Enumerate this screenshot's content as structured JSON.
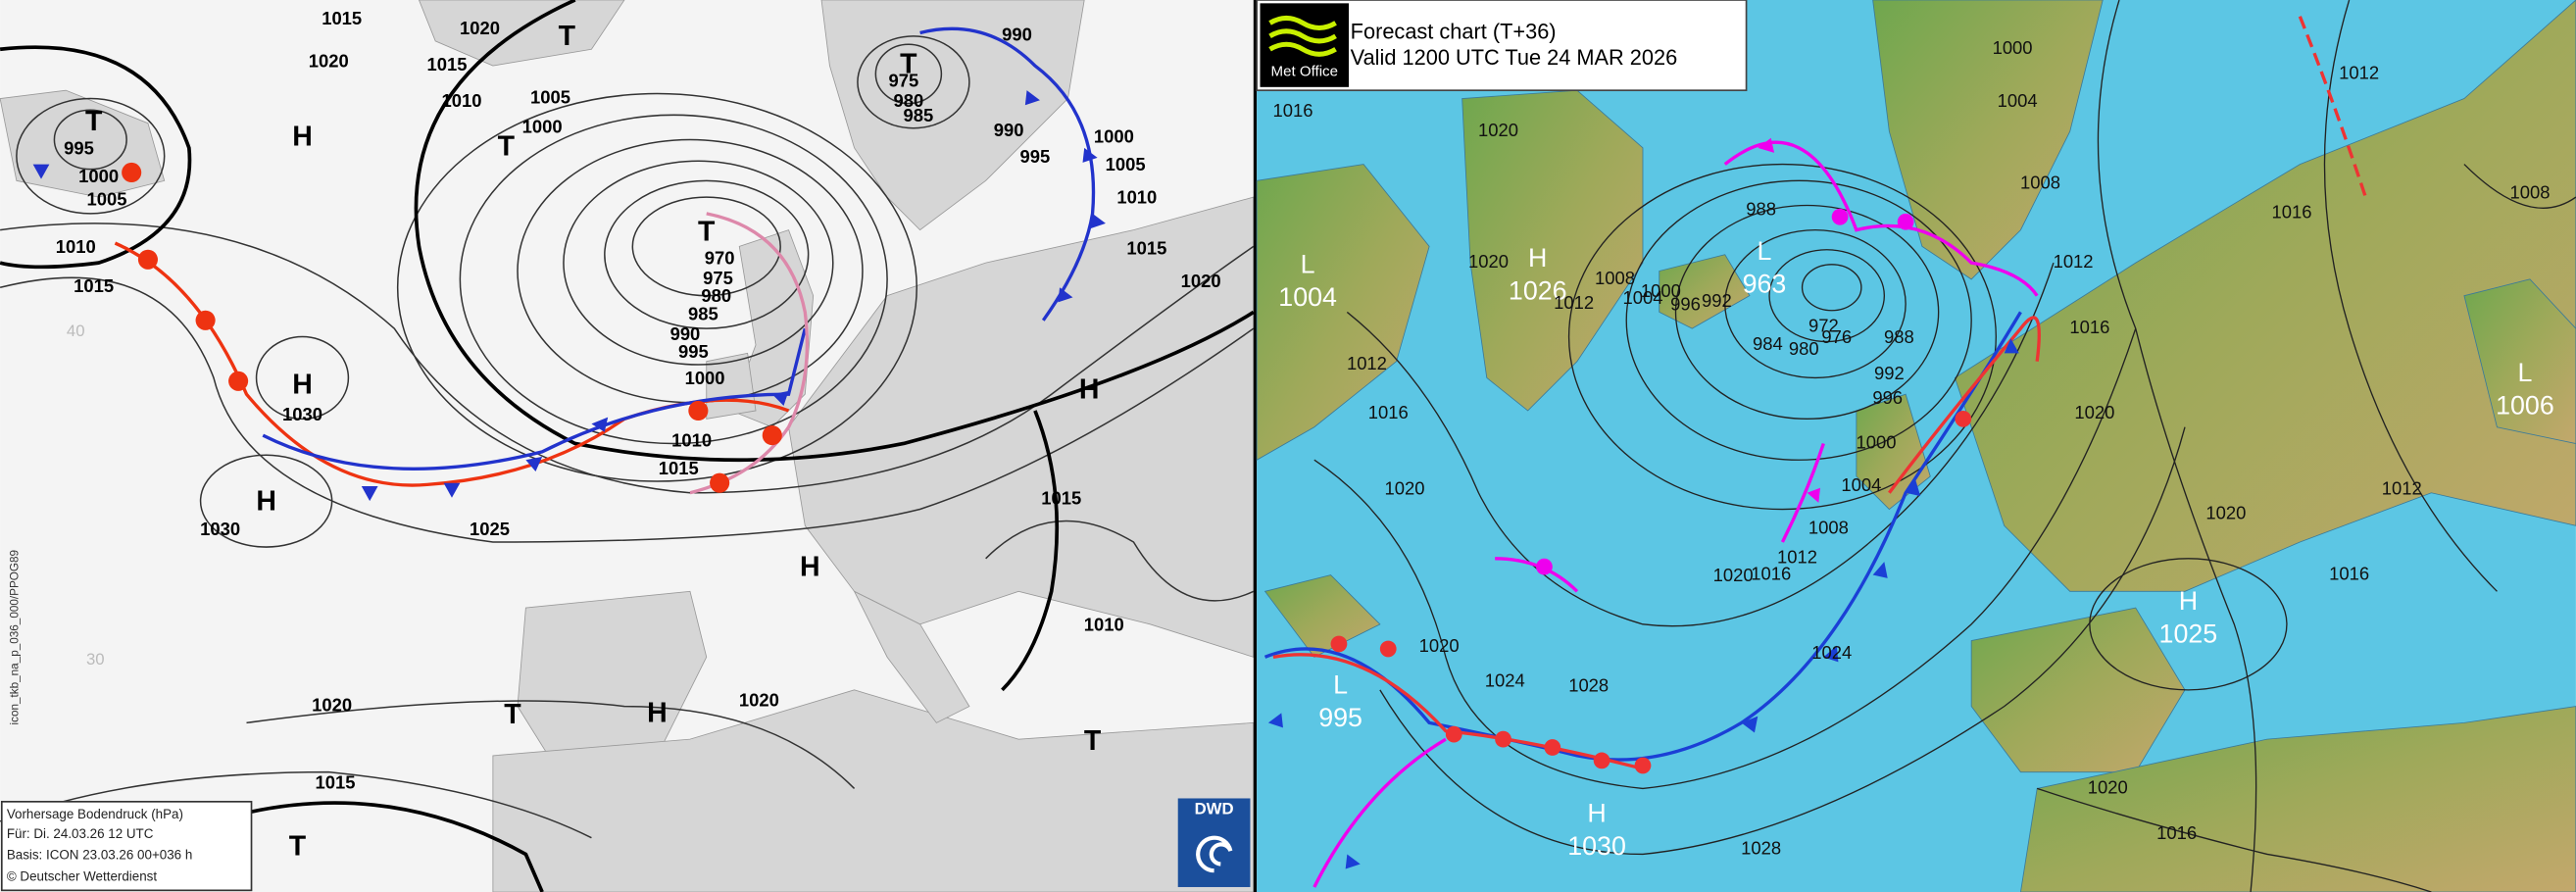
{
  "left_map": {
    "isobar_labels": [
      1015,
      1020,
      1020,
      1015,
      1010,
      1005,
      1000,
      995,
      1000,
      1005,
      1010,
      1015,
      975,
      980,
      985,
      990,
      990,
      995,
      1000,
      1005,
      1010,
      1015,
      1020,
      970,
      975,
      980,
      985,
      990,
      995,
      1000,
      1010,
      1015,
      1030,
      1030,
      1025,
      1015,
      1010,
      1020,
      1020,
      1015
    ],
    "centers": [
      "T",
      "T",
      "H",
      "T",
      "T",
      "T",
      "H",
      "H",
      "H",
      "H",
      "T",
      "H",
      "T",
      "T"
    ],
    "grid_labels": [
      "40",
      "30"
    ],
    "side_text": "icon_tkb_na_p_036_000/PPOG89",
    "info_box": [
      "Vorhersage Bodendruck (hPa)",
      "Für:  Di. 24.03.26  12 UTC",
      "Basis: ICON  23.03.26 00+036 h",
      "© Deutscher Wetterdienst"
    ],
    "logo": "DWD"
  },
  "right_map": {
    "header": {
      "title": "Forecast chart (T+36)",
      "valid": "Valid 1200 UTC Tue 24 MAR 2026",
      "logo": "Met Office"
    },
    "centers": [
      {
        "letter": "L",
        "pressure": 1004
      },
      {
        "letter": "H",
        "pressure": 1026
      },
      {
        "letter": "L",
        "pressure": 963
      },
      {
        "letter": "L",
        "pressure": 995
      },
      {
        "letter": "H",
        "pressure": 1030
      },
      {
        "letter": "H",
        "pressure": 1025
      },
      {
        "letter": "L",
        "pressure": 1006
      }
    ],
    "isobar_labels": [
      1016,
      1020,
      1000,
      1004,
      1008,
      1012,
      1016,
      1020,
      1012,
      1016,
      1008,
      1012,
      1016,
      1020,
      1020,
      1016,
      1028,
      1024,
      1028,
      1024,
      1020,
      1020,
      1016,
      1012,
      1008,
      1004,
      1000,
      1012,
      1016,
      1020,
      988,
      992,
      996,
      1000,
      1004,
      1008,
      1012,
      1020,
      992,
      996,
      988,
      976,
      980,
      972,
      984
    ]
  }
}
